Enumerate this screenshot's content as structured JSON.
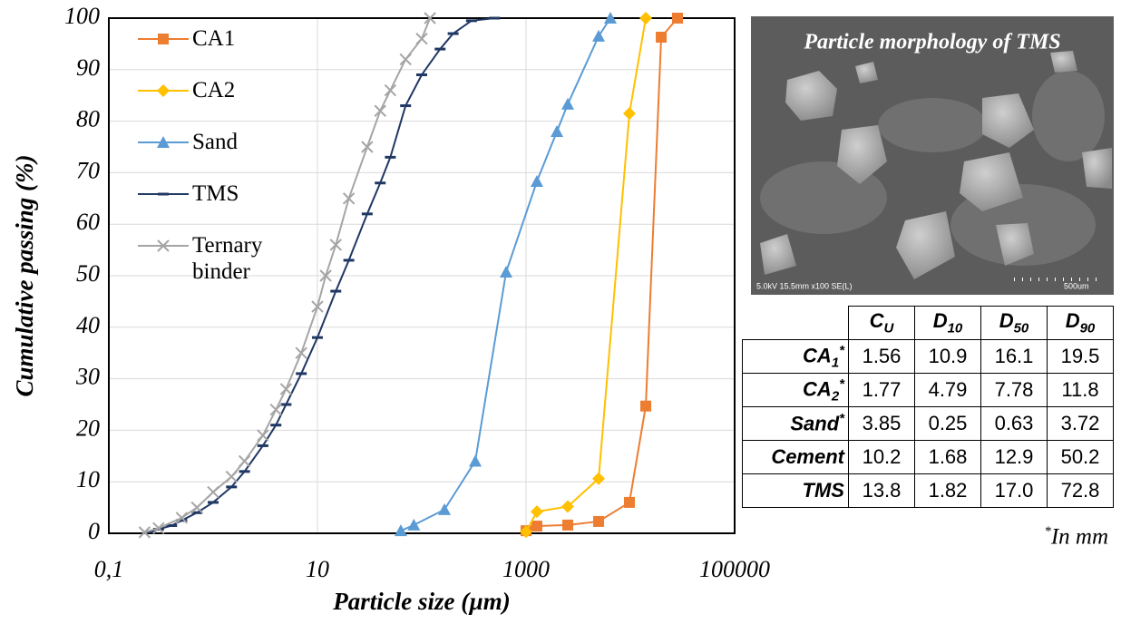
{
  "chart_data": {
    "type": "line",
    "xlabel": "Particle size (µm)",
    "ylabel": "Cumulative passing (%)",
    "xscale": "log",
    "xlim": [
      0.1,
      100000
    ],
    "ylim": [
      0,
      100
    ],
    "xticks": [
      {
        "value": 0.1,
        "label": "0,1"
      },
      10,
      1000,
      100000
    ],
    "yticks": [
      0,
      10,
      20,
      30,
      40,
      50,
      60,
      70,
      80,
      90,
      100
    ],
    "grid": true,
    "legend": "upper left",
    "series": [
      {
        "name": "CA1",
        "color": "#ed7d31",
        "marker": "square",
        "x": [
          1000,
          1271,
          2512,
          4966,
          9800,
          14060,
          19770,
          28330
        ],
        "values": [
          0.5,
          1.4,
          1.6,
          2.3,
          6,
          24.7,
          96.3,
          100
        ]
      },
      {
        "name": "CA2",
        "color": "#ffc000",
        "marker": "diamond",
        "x": [
          1000,
          1271,
          2512,
          4966,
          9800,
          14060
        ],
        "values": [
          0.3,
          4.2,
          5.2,
          10.6,
          81.5,
          100
        ]
      },
      {
        "name": "Sand",
        "color": "#5b9bd5",
        "marker": "triangle",
        "x": [
          63,
          84,
          165,
          326,
          644,
          1271,
          1977,
          2512,
          4966,
          6440
        ],
        "values": [
          0.5,
          1.6,
          4.6,
          14,
          50.7,
          68.3,
          78,
          83.3,
          96.5,
          100
        ]
      },
      {
        "name": "TMS",
        "color": "#203864",
        "marker": "dash",
        "x": [
          0.25,
          0.3,
          0.4,
          0.5,
          0.7,
          1,
          1.5,
          2,
          3,
          4,
          5,
          7,
          10,
          15,
          20,
          30,
          40,
          50,
          70,
          100,
          150,
          200,
          300,
          500
        ],
        "values": [
          0.3,
          0.8,
          1.5,
          2.5,
          4,
          6,
          9,
          12,
          17,
          21,
          25,
          31,
          38,
          47,
          53,
          62,
          68,
          73,
          83,
          89,
          94,
          97,
          99.5,
          100
        ]
      },
      {
        "name": "Ternary binder",
        "color": "#a5a5a5",
        "marker": "x",
        "x": [
          0.22,
          0.3,
          0.5,
          0.7,
          1,
          1.5,
          2,
          3,
          4,
          5,
          7,
          10,
          12,
          15,
          20,
          30,
          40,
          50,
          70,
          100,
          120
        ],
        "values": [
          0.2,
          1,
          3,
          5,
          8,
          11,
          14,
          19,
          24,
          28,
          35,
          44,
          50,
          56,
          65,
          75,
          82,
          86,
          92,
          96,
          100
        ]
      }
    ]
  },
  "image": {
    "title": "Particle morphology of TMS",
    "caption": "5.0kV 15.5mm x100 SE(L)",
    "scale": "500um"
  },
  "table": {
    "header": [
      {
        "main": "C",
        "sub": "U"
      },
      {
        "main": "D",
        "sub": "10"
      },
      {
        "main": "D",
        "sub": "50"
      },
      {
        "main": "D",
        "sub": "90"
      }
    ],
    "rows": [
      {
        "label": {
          "main": "CA",
          "sub": "1",
          "sup": "*"
        },
        "cells": [
          "1.56",
          "10.9",
          "16.1",
          "19.5"
        ]
      },
      {
        "label": {
          "main": "CA",
          "sub": "2",
          "sup": "*"
        },
        "cells": [
          "1.77",
          "4.79",
          "7.78",
          "11.8"
        ]
      },
      {
        "label": {
          "main": "Sand",
          "sup": "*"
        },
        "cells": [
          "3.85",
          "0.25",
          "0.63",
          "3.72"
        ]
      },
      {
        "label": {
          "main": "Cement"
        },
        "cells": [
          "10.2",
          "1.68",
          "12.9",
          "50.2"
        ]
      },
      {
        "label": {
          "main": "TMS"
        },
        "cells": [
          "13.8",
          "1.82",
          "17.0",
          "72.8"
        ]
      }
    ],
    "footnote": {
      "sup": "*",
      "text": "In mm"
    }
  }
}
